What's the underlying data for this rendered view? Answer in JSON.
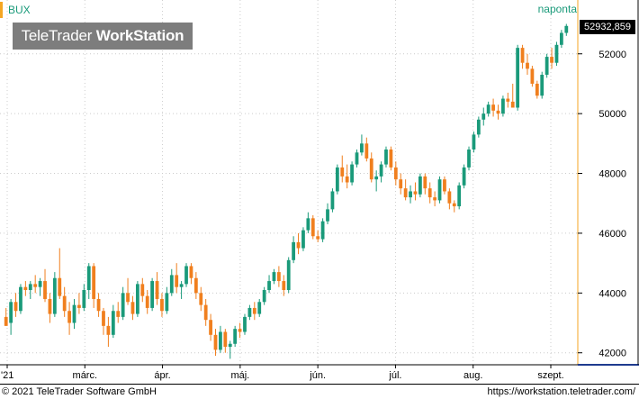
{
  "symbol": "BUX",
  "watermark": {
    "part1": "TeleTrader ",
    "part2": "WorkStation"
  },
  "interval_label": "naponta",
  "last_price_label": "52932,859",
  "footer": {
    "copyright": "© 2021 TeleTrader Software GmbH",
    "url": "https://workstation.teletrader.com/"
  },
  "colors": {
    "up": "#1a9a7a",
    "down": "#f07f1e",
    "axis_accent": "#f5a623",
    "grid": "#cccccc"
  },
  "chart_data": {
    "type": "candlestick",
    "y_axis": {
      "ticks": [
        42000,
        44000,
        46000,
        48000,
        50000,
        52000
      ],
      "tick_labels": [
        "42000",
        "44000",
        "46000",
        "48000",
        "50000",
        "52000"
      ],
      "range": [
        41600,
        53800
      ],
      "position": "right"
    },
    "x_axis": {
      "labels": [
        "'21",
        "márc.",
        "ápr.",
        "máj.",
        "jún.",
        "júl.",
        "aug.",
        "szept."
      ]
    },
    "grid": true,
    "series": [
      {
        "candles": [
          [
            43200,
            43500,
            42900,
            42900
          ],
          [
            43000,
            43800,
            42600,
            43700
          ],
          [
            43700,
            44000,
            43200,
            43400
          ],
          [
            43400,
            44300,
            43300,
            44200
          ],
          [
            44200,
            44400,
            43900,
            44100
          ],
          [
            44100,
            44400,
            43800,
            44300
          ],
          [
            44300,
            44600,
            44000,
            44200
          ],
          [
            44200,
            44500,
            43900,
            44400
          ],
          [
            44400,
            44800,
            43700,
            43800
          ],
          [
            43800,
            44000,
            43000,
            43300
          ],
          [
            43300,
            44700,
            43200,
            44500
          ],
          [
            44500,
            45500,
            43800,
            43900
          ],
          [
            43900,
            44200,
            43200,
            43400
          ],
          [
            43400,
            43700,
            42600,
            43000
          ],
          [
            43000,
            43800,
            42800,
            43600
          ],
          [
            43600,
            44000,
            43300,
            43500
          ],
          [
            43500,
            44300,
            43400,
            44100
          ],
          [
            44100,
            45000,
            43800,
            44900
          ],
          [
            44900,
            45000,
            43500,
            43800
          ],
          [
            43800,
            44000,
            43200,
            43400
          ],
          [
            43400,
            43500,
            42600,
            42900
          ],
          [
            42900,
            43200,
            42200,
            42600
          ],
          [
            42600,
            43600,
            42500,
            43400
          ],
          [
            43400,
            43700,
            43000,
            43200
          ],
          [
            43200,
            44200,
            43100,
            44000
          ],
          [
            44000,
            44500,
            43600,
            43700
          ],
          [
            43700,
            43900,
            43100,
            43300
          ],
          [
            43300,
            44400,
            43200,
            44300
          ],
          [
            44300,
            44500,
            43700,
            43900
          ],
          [
            43900,
            44100,
            43300,
            43500
          ],
          [
            43500,
            44500,
            43400,
            44400
          ],
          [
            44400,
            44700,
            43600,
            43800
          ],
          [
            43800,
            44000,
            43200,
            43400
          ],
          [
            43400,
            44200,
            43300,
            44000
          ],
          [
            44000,
            44800,
            43900,
            44600
          ],
          [
            44600,
            45000,
            44000,
            44200
          ],
          [
            44200,
            44400,
            43800,
            44300
          ],
          [
            44300,
            45000,
            44200,
            44900
          ],
          [
            44900,
            45000,
            44300,
            44500
          ],
          [
            44500,
            44700,
            43800,
            44000
          ],
          [
            44000,
            44200,
            43400,
            43600
          ],
          [
            43600,
            43800,
            42900,
            43100
          ],
          [
            43100,
            43300,
            42400,
            42600
          ],
          [
            42600,
            42800,
            41900,
            42100
          ],
          [
            42100,
            42900,
            42000,
            42700
          ],
          [
            42700,
            42800,
            42000,
            42200
          ],
          [
            42200,
            42400,
            41800,
            42300
          ],
          [
            42300,
            42900,
            42200,
            42800
          ],
          [
            42800,
            43000,
            42500,
            42700
          ],
          [
            42700,
            43300,
            42600,
            43200
          ],
          [
            43200,
            43600,
            43100,
            43500
          ],
          [
            43500,
            43700,
            43100,
            43300
          ],
          [
            43300,
            43800,
            43200,
            43700
          ],
          [
            43700,
            44200,
            43600,
            44100
          ],
          [
            44100,
            44600,
            44000,
            44400
          ],
          [
            44400,
            44800,
            44300,
            44700
          ],
          [
            44700,
            44900,
            44200,
            44400
          ],
          [
            44400,
            44600,
            43900,
            44100
          ],
          [
            44100,
            45200,
            44000,
            45100
          ],
          [
            45100,
            45900,
            45000,
            45700
          ],
          [
            45700,
            46000,
            45300,
            45500
          ],
          [
            45500,
            46200,
            45400,
            46100
          ],
          [
            46100,
            46700,
            46000,
            46500
          ],
          [
            46500,
            46600,
            45800,
            45900
          ],
          [
            45900,
            46100,
            45700,
            45800
          ],
          [
            45800,
            46500,
            45700,
            46400
          ],
          [
            46400,
            47000,
            46300,
            46800
          ],
          [
            46800,
            47500,
            46700,
            47400
          ],
          [
            47400,
            48300,
            47300,
            48200
          ],
          [
            48200,
            48600,
            47700,
            47900
          ],
          [
            47900,
            48300,
            47500,
            47700
          ],
          [
            47700,
            48400,
            47600,
            48300
          ],
          [
            48300,
            48800,
            48200,
            48700
          ],
          [
            48700,
            49300,
            48600,
            49000
          ],
          [
            49000,
            49200,
            48400,
            48500
          ],
          [
            48500,
            48700,
            47700,
            47800
          ],
          [
            47800,
            48100,
            47400,
            47900
          ],
          [
            47900,
            48400,
            47700,
            48300
          ],
          [
            48300,
            48900,
            48200,
            48800
          ],
          [
            48800,
            48900,
            48100,
            48200
          ],
          [
            48200,
            48400,
            47600,
            47800
          ],
          [
            47800,
            48000,
            47300,
            47500
          ],
          [
            47500,
            47800,
            47100,
            47200
          ],
          [
            47200,
            47600,
            47000,
            47400
          ],
          [
            47400,
            47700,
            47100,
            47300
          ],
          [
            47300,
            48000,
            47200,
            47900
          ],
          [
            47900,
            48000,
            47300,
            47500
          ],
          [
            47500,
            47700,
            47000,
            47200
          ],
          [
            47200,
            47400,
            46900,
            47100
          ],
          [
            47100,
            47900,
            47000,
            47800
          ],
          [
            47800,
            47900,
            47300,
            47400
          ],
          [
            47400,
            47500,
            46800,
            47000
          ],
          [
            47000,
            47100,
            46700,
            46900
          ],
          [
            46900,
            47700,
            46800,
            47600
          ],
          [
            47600,
            48300,
            47500,
            48200
          ],
          [
            48200,
            48900,
            48100,
            48800
          ],
          [
            48800,
            49400,
            48700,
            49300
          ],
          [
            49300,
            49900,
            49200,
            49800
          ],
          [
            49800,
            50200,
            49600,
            50000
          ],
          [
            50000,
            50400,
            49900,
            50300
          ],
          [
            50300,
            50500,
            49900,
            50100
          ],
          [
            50100,
            50300,
            49800,
            50000
          ],
          [
            50000,
            50600,
            49900,
            50500
          ],
          [
            50500,
            50700,
            50200,
            50400
          ],
          [
            50400,
            51000,
            50300,
            50200
          ],
          [
            50200,
            52300,
            50100,
            52200
          ],
          [
            52200,
            52300,
            51500,
            51700
          ],
          [
            51700,
            52000,
            51300,
            51500
          ],
          [
            51500,
            51600,
            50900,
            51000
          ],
          [
            51000,
            51100,
            50500,
            50600
          ],
          [
            50600,
            51400,
            50500,
            51300
          ],
          [
            51300,
            52000,
            51200,
            51900
          ],
          [
            51900,
            52200,
            51500,
            51700
          ],
          [
            51700,
            52400,
            51600,
            52300
          ],
          [
            52300,
            52800,
            52200,
            52700
          ],
          [
            52700,
            53000,
            52600,
            52932.859
          ]
        ]
      }
    ],
    "last_value": 52932.859
  }
}
